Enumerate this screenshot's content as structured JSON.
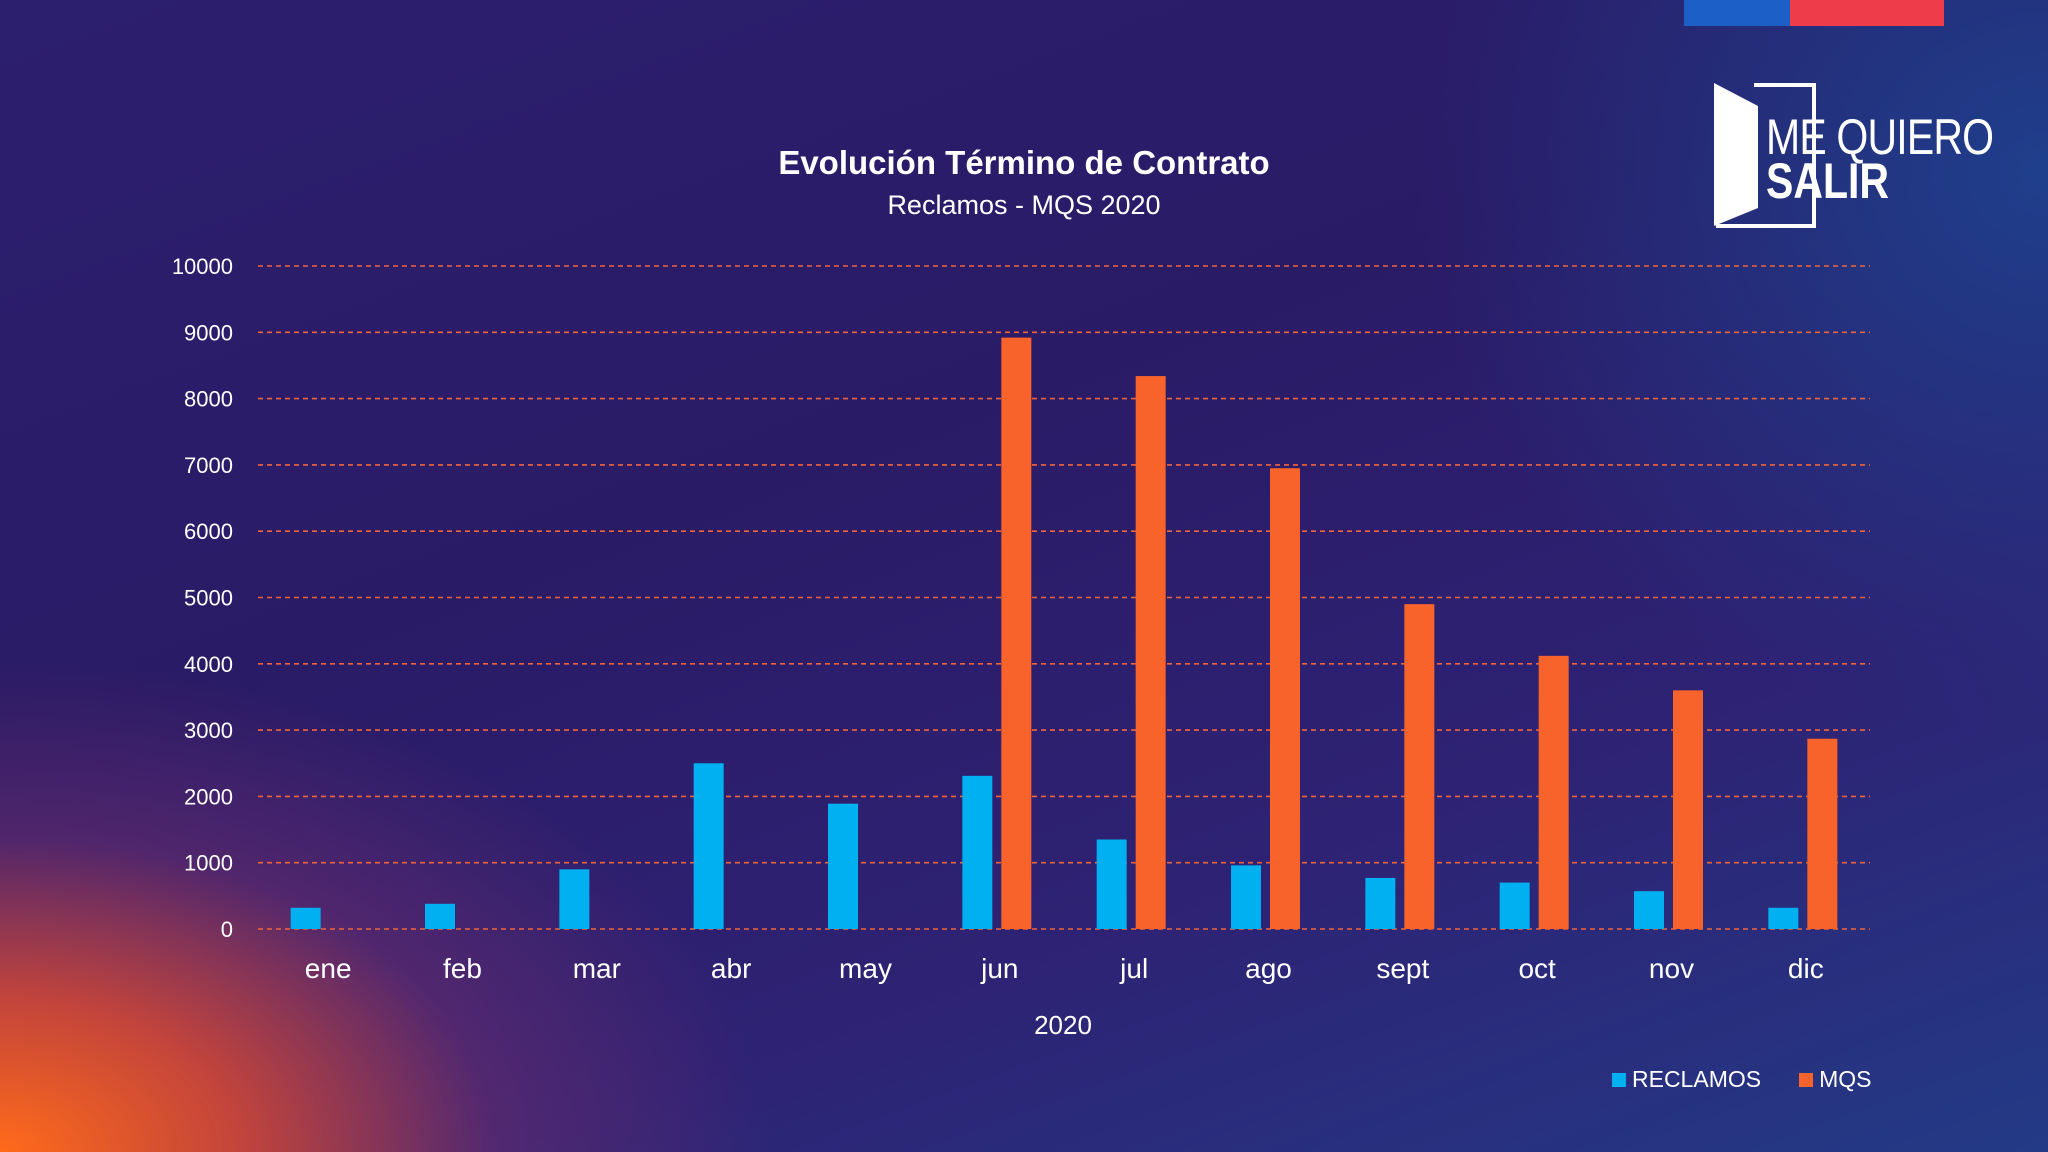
{
  "brand": {
    "line1": "ME QUIERO",
    "line2": "SALIR",
    "flag_colors": [
      "#1c5fc7",
      "#ef3c4a"
    ]
  },
  "chart_data": {
    "type": "bar",
    "title": "Evolución Término de Contrato",
    "subtitle": "Reclamos - MQS  2020",
    "xlabel": "2020",
    "ylabel": "",
    "ylim": [
      0,
      10000
    ],
    "yticks": [
      0,
      1000,
      2000,
      3000,
      4000,
      5000,
      6000,
      7000,
      8000,
      9000,
      10000
    ],
    "grid": true,
    "legend_position": "bottom-right",
    "categories": [
      "ene",
      "feb",
      "mar",
      "abr",
      "may",
      "jun",
      "jul",
      "ago",
      "sept",
      "oct",
      "nov",
      "dic"
    ],
    "series": [
      {
        "name": "RECLAMOS",
        "color": "#00b0f0",
        "values": [
          320,
          380,
          900,
          2500,
          1890,
          2310,
          1350,
          960,
          770,
          700,
          570,
          320
        ]
      },
      {
        "name": "MQS",
        "color": "#f7632a",
        "values": [
          null,
          null,
          null,
          null,
          null,
          8920,
          8340,
          6950,
          4900,
          4120,
          3600,
          2870
        ]
      }
    ]
  }
}
